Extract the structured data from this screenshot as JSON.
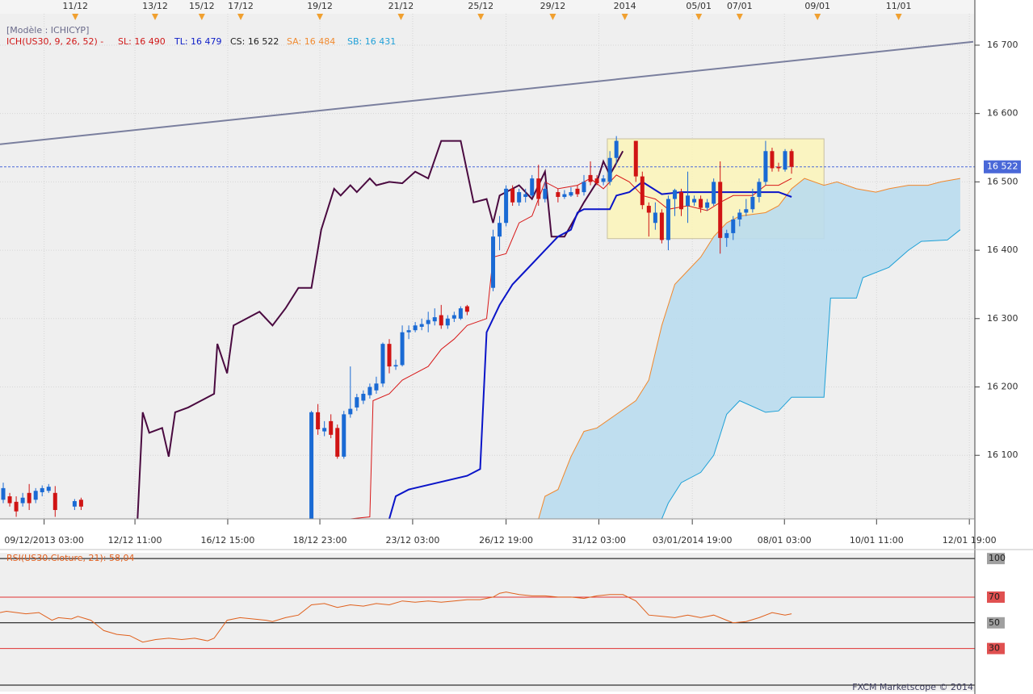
{
  "header": {
    "model": "[Modèle : ICHICYP]",
    "indicator": "ICH(US30, 9, 26, 52) -",
    "sl": "SL: 16 490",
    "tl": "TL: 16 479",
    "cs": "CS: 16 522",
    "sa": "SA: 16 484",
    "sb": "SB: 16 431"
  },
  "chart_data": [
    {
      "type": "candlestick",
      "xlim": [
        0,
        150
      ],
      "ylim": [
        16007,
        16746
      ],
      "yticks": [
        {
          "value": 16100,
          "label": "16 100"
        },
        {
          "value": 16200,
          "label": "16 200"
        },
        {
          "value": 16300,
          "label": "16 300"
        },
        {
          "value": 16400,
          "label": "16 400"
        },
        {
          "value": 16500,
          "label": "16 500"
        },
        {
          "value": 16600,
          "label": "16 600"
        },
        {
          "value": 16700,
          "label": "16 700"
        }
      ],
      "xticks": [
        {
          "value": 6.8,
          "label": "09/12/2013 03:00"
        },
        {
          "value": 20.8,
          "label": "12/12 11:00"
        },
        {
          "value": 35.1,
          "label": "16/12 15:00"
        },
        {
          "value": 49.3,
          "label": "18/12 23:00"
        },
        {
          "value": 63.6,
          "label": "23/12 03:00"
        },
        {
          "value": 78,
          "label": "26/12 19:00"
        },
        {
          "value": 92.3,
          "label": "31/12 03:00"
        },
        {
          "value": 106.7,
          "label": "03/01/2014 19:00"
        },
        {
          "value": 120.9,
          "label": "08/01 03:00"
        },
        {
          "value": 135.1,
          "label": "10/01 11:00"
        },
        {
          "value": 149.4,
          "label": "12/01 19:00"
        }
      ],
      "top_markers": [
        {
          "value": 11.6,
          "label": "11/12"
        },
        {
          "value": 23.9,
          "label": "13/12"
        },
        {
          "value": 31.1,
          "label": "15/12"
        },
        {
          "value": 37.1,
          "label": "17/12"
        },
        {
          "value": 49.3,
          "label": "19/12"
        },
        {
          "value": 61.8,
          "label": "21/12"
        },
        {
          "value": 74.1,
          "label": "25/12"
        },
        {
          "value": 85.2,
          "label": "29/12"
        },
        {
          "value": 96.3,
          "label": "2014"
        },
        {
          "value": 107.7,
          "label": "05/01"
        },
        {
          "value": 114,
          "label": "07/01"
        },
        {
          "value": 126,
          "label": "09/01"
        },
        {
          "value": 138.5,
          "label": "11/01"
        }
      ],
      "grid": true,
      "zone": {
        "x": [
          93.6,
          127
        ],
        "y": [
          16417,
          16563
        ],
        "color": "#fbf5b8"
      },
      "cloud": {
        "color": "#b9dcee",
        "senkou_a": {
          "color": "#f0882c",
          "x": [
            83,
            84,
            86,
            88,
            90,
            92,
            95,
            98,
            100,
            102,
            104,
            106,
            108,
            110,
            112,
            114,
            118,
            120,
            122,
            124,
            127,
            129,
            132,
            135,
            137,
            140,
            143,
            145,
            148
          ],
          "values": [
            16007,
            16040,
            16050,
            16098,
            16135,
            16140,
            16160,
            16180,
            16210,
            16290,
            16350,
            16370,
            16390,
            16420,
            16440,
            16450,
            16455,
            16465,
            16490,
            16505,
            16495,
            16500,
            16490,
            16485,
            16490,
            16495,
            16495,
            16500,
            16505
          ]
        },
        "senkou_b": {
          "color": "#1ea0d6",
          "x": [
            102,
            103,
            105,
            108,
            110,
            112,
            114,
            118,
            120,
            122,
            127,
            128,
            132,
            133,
            137,
            140,
            142,
            146,
            148
          ],
          "values": [
            16007,
            16030,
            16060,
            16075,
            16100,
            16160,
            16180,
            16163,
            16165,
            16185,
            16185,
            16330,
            16330,
            16360,
            16375,
            16400,
            16413,
            16415,
            16430
          ]
        }
      },
      "series": [
        {
          "color": "#7a7f9e",
          "width": 2,
          "x": [
            0,
            150
          ],
          "values": [
            16555,
            16705
          ]
        },
        {
          "color": "#4a0a40",
          "width": 2,
          "x": [
            21.2,
            22,
            23,
            25,
            26,
            27,
            29,
            31,
            33,
            33.5,
            35,
            36,
            38,
            40,
            42,
            44,
            46,
            48,
            49.5,
            51.5,
            52.5,
            54,
            55,
            57,
            58,
            60,
            62,
            64,
            66,
            68,
            71,
            73,
            75,
            76,
            77,
            80,
            82,
            84,
            85,
            87,
            90,
            92,
            93,
            94,
            96
          ],
          "values": [
            16007,
            16163,
            16133,
            16140,
            16098,
            16163,
            16170,
            16180,
            16190,
            16263,
            16220,
            16290,
            16300,
            16310,
            16290,
            16315,
            16345,
            16345,
            16430,
            16490,
            16480,
            16495,
            16485,
            16505,
            16495,
            16500,
            16498,
            16515,
            16505,
            16560,
            16560,
            16470,
            16475,
            16440,
            16480,
            16495,
            16475,
            16515,
            16420,
            16420,
            16470,
            16500,
            16530,
            16510,
            16545
          ]
        },
        {
          "color": "#d81818",
          "width": 1,
          "x": [
            54,
            57,
            57.5,
            60,
            62,
            66,
            68,
            70,
            72,
            75,
            76,
            78,
            80,
            82,
            84,
            86,
            89,
            91,
            93,
            95,
            97,
            99,
            101,
            103,
            106,
            109,
            111,
            113,
            116,
            118,
            120,
            122
          ],
          "values": [
            16007,
            16010,
            16180,
            16190,
            16210,
            16230,
            16255,
            16270,
            16290,
            16300,
            16390,
            16395,
            16440,
            16450,
            16500,
            16490,
            16495,
            16505,
            16490,
            16510,
            16500,
            16480,
            16475,
            16460,
            16465,
            16458,
            16470,
            16480,
            16480,
            16495,
            16495,
            16505
          ]
        },
        {
          "color": "#0a14c8",
          "width": 2,
          "x": [
            60,
            61,
            63,
            72,
            74,
            75,
            77,
            79,
            81,
            84,
            86,
            88,
            89,
            90,
            94,
            95,
            97,
            99,
            102,
            105,
            110,
            113,
            118,
            120,
            122
          ],
          "values": [
            16007,
            16040,
            16050,
            16070,
            16080,
            16280,
            16320,
            16350,
            16370,
            16400,
            16420,
            16430,
            16455,
            16460,
            16460,
            16480,
            16485,
            16500,
            16482,
            16485,
            16485,
            16485,
            16485,
            16485,
            16478
          ]
        }
      ],
      "ohlc": {
        "up_color": "#1a6ad4",
        "down_color": "#d01414",
        "x": [
          0.5,
          1.5,
          2.5,
          3.5,
          4.5,
          5.5,
          6.5,
          7.5,
          8.5,
          11.5,
          12.5,
          48,
          49,
          50,
          51,
          52,
          53,
          54,
          55,
          56,
          57,
          58,
          59,
          60,
          61,
          62,
          63,
          64,
          65,
          66,
          67,
          68,
          69,
          70,
          71,
          72,
          76,
          77,
          78,
          79,
          80,
          81,
          82,
          83,
          84,
          86,
          87,
          88,
          89,
          90,
          91,
          92,
          93,
          94,
          95,
          98,
          99,
          100,
          101,
          102,
          103,
          104,
          105,
          106,
          107,
          108,
          109,
          110,
          111,
          112,
          113,
          114,
          115,
          116,
          117,
          118,
          119,
          120,
          121,
          122
        ],
        "open": [
          16035,
          16040,
          16032,
          16030,
          16045,
          16035,
          16046,
          16048,
          16045,
          16025,
          16035,
          15990,
          16163,
          16135,
          16150,
          16140,
          16098,
          16160,
          16170,
          16180,
          16188,
          16195,
          16205,
          16263,
          16230,
          16232,
          16280,
          16283,
          16288,
          16292,
          16296,
          16305,
          16290,
          16300,
          16300,
          16318,
          16345,
          16420,
          16440,
          16490,
          16470,
          16478,
          16480,
          16505,
          16475,
          16485,
          16478,
          16480,
          16490,
          16485,
          16510,
          16505,
          16500,
          16500,
          16535,
          16560,
          16508,
          16465,
          16440,
          16455,
          16415,
          16475,
          16485,
          16465,
          16470,
          16475,
          16462,
          16468,
          16500,
          16418,
          16425,
          16445,
          16455,
          16460,
          16478,
          16500,
          16545,
          16522,
          16518,
          16545
        ],
        "high": [
          16060,
          16045,
          16040,
          16045,
          16058,
          16052,
          16056,
          16058,
          16055,
          16036,
          16038,
          16165,
          16175,
          16150,
          16160,
          16145,
          16165,
          16230,
          16190,
          16195,
          16205,
          16215,
          16265,
          16270,
          16240,
          16290,
          16290,
          16295,
          16300,
          16310,
          16315,
          16320,
          16305,
          16310,
          16318,
          16320,
          16430,
          16450,
          16495,
          16495,
          16490,
          16490,
          16510,
          16525,
          16500,
          16490,
          16488,
          16492,
          16495,
          16510,
          16530,
          16510,
          16510,
          16545,
          16567,
          16560,
          16515,
          16470,
          16470,
          16460,
          16480,
          16490,
          16490,
          16515,
          16480,
          16480,
          16475,
          16505,
          16530,
          16430,
          16450,
          16460,
          16475,
          16490,
          16505,
          16560,
          16550,
          16528,
          16548,
          16548
        ],
        "low": [
          16030,
          16025,
          16010,
          16025,
          16020,
          16030,
          16040,
          16045,
          16010,
          16020,
          16020,
          15990,
          16130,
          16128,
          16125,
          16095,
          16095,
          16155,
          16165,
          16175,
          16183,
          16190,
          16200,
          16220,
          16225,
          16230,
          16270,
          16280,
          16283,
          16280,
          16290,
          16285,
          16285,
          16295,
          16298,
          16305,
          16340,
          16400,
          16435,
          16465,
          16465,
          16470,
          16478,
          16465,
          16470,
          16470,
          16475,
          16478,
          16478,
          16480,
          16495,
          16495,
          16495,
          16495,
          16525,
          16500,
          16460,
          16420,
          16430,
          16410,
          16400,
          16450,
          16450,
          16440,
          16465,
          16455,
          16458,
          16465,
          16395,
          16405,
          16415,
          16435,
          16450,
          16455,
          16470,
          16495,
          16515,
          16515,
          16515,
          16512
        ],
        "close": [
          16052,
          16030,
          16018,
          16038,
          16030,
          16048,
          16052,
          16054,
          16020,
          16033,
          16025,
          16163,
          16138,
          16140,
          16130,
          16098,
          16160,
          16168,
          16185,
          16190,
          16200,
          16205,
          16263,
          16230,
          16232,
          16280,
          16283,
          16290,
          16292,
          16298,
          16302,
          16290,
          16300,
          16305,
          16315,
          16310,
          16420,
          16440,
          16490,
          16470,
          16485,
          16482,
          16505,
          16475,
          16490,
          16478,
          16482,
          16485,
          16482,
          16500,
          16500,
          16498,
          16505,
          16535,
          16560,
          16508,
          16466,
          16455,
          16455,
          16415,
          16475,
          16488,
          16460,
          16480,
          16475,
          16462,
          16470,
          16500,
          16418,
          16425,
          16445,
          16455,
          16460,
          16478,
          16500,
          16545,
          16520,
          16520,
          16545,
          16522
        ]
      },
      "last_price": {
        "value": 16522,
        "label": "16 522",
        "color": "#4a68d8"
      }
    },
    {
      "type": "line",
      "title": "RSI(US30.Cloture, 21): 58,04",
      "xlim": [
        0,
        150
      ],
      "ylim": [
        -3.5,
        104.5
      ],
      "yticks": [
        30,
        50,
        70,
        100
      ],
      "tick_colors": [
        "#e05050",
        "#a0a0a0",
        "#e05050",
        "#a0a0a0"
      ],
      "level_colors": [
        "#e03030",
        "#000000",
        "#e03030",
        "#000000"
      ],
      "series": [
        {
          "color": "#e0601c",
          "x": [
            0,
            1,
            4,
            6,
            8,
            9,
            11,
            12,
            14,
            15,
            16,
            18,
            20,
            22,
            24,
            26,
            28,
            30,
            32,
            33,
            35,
            37,
            39,
            41,
            42,
            44,
            46,
            48,
            50,
            52,
            54,
            56,
            58,
            60,
            62,
            64,
            66,
            68,
            70,
            72,
            74,
            76,
            77,
            78,
            80,
            82,
            84,
            86,
            88,
            90,
            92,
            94,
            96,
            98,
            100,
            102,
            104,
            106,
            108,
            110,
            112,
            113,
            115,
            117,
            119,
            121,
            122
          ],
          "values": [
            58,
            59,
            57,
            58,
            52,
            54,
            53,
            55,
            52,
            48,
            44,
            41,
            40,
            35,
            37,
            38,
            37,
            38,
            36,
            38,
            52,
            54,
            53,
            52,
            51,
            54,
            56,
            64,
            65,
            62,
            64,
            63,
            65,
            64,
            67,
            66,
            67,
            66,
            67,
            68,
            68,
            70,
            73,
            74,
            72,
            71,
            71,
            70,
            70,
            69,
            71,
            72,
            72,
            67,
            56,
            55,
            54,
            56,
            54,
            56,
            52,
            50,
            51,
            54,
            58,
            56,
            57
          ]
        }
      ]
    }
  ],
  "footer": "FXCM Marketscope © 2014"
}
